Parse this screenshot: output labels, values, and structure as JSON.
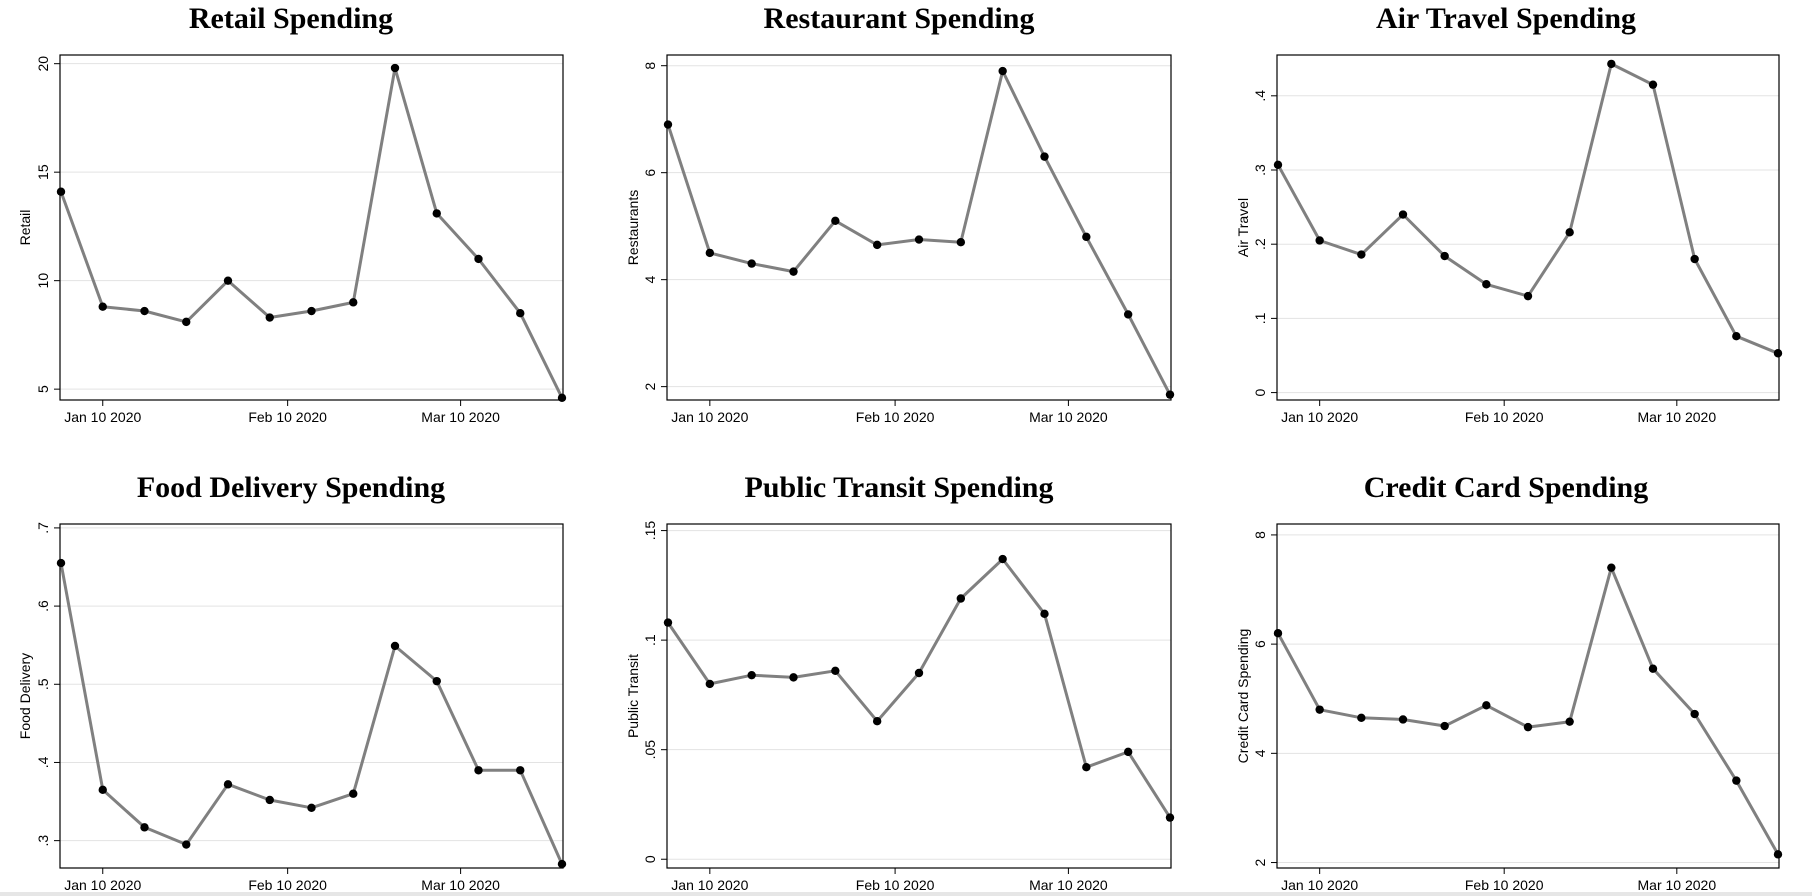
{
  "chart_data": [
    {
      "type": "line",
      "title": "Retail Spending",
      "ylabel": "Retail",
      "xlabel": "",
      "x": [
        "2020-01-03",
        "2020-01-10",
        "2020-01-17",
        "2020-01-24",
        "2020-01-31",
        "2020-02-07",
        "2020-02-14",
        "2020-02-21",
        "2020-02-28",
        "2020-03-06",
        "2020-03-13",
        "2020-03-20",
        "2020-03-27"
      ],
      "xticks": [
        "2020-01-10",
        "2020-02-10",
        "2020-03-10"
      ],
      "xtick_labels": [
        "Jan 10 2020",
        "Feb 10 2020",
        "Mar 10 2020"
      ],
      "values": [
        14.1,
        8.8,
        8.6,
        8.1,
        10.0,
        8.3,
        8.6,
        9.0,
        19.8,
        13.1,
        11.0,
        8.5,
        4.6
      ],
      "ylim": [
        4.5,
        20.4
      ],
      "yticks": [
        5,
        10,
        15,
        20
      ],
      "ytick_labels": [
        "5",
        "10",
        "15",
        "20"
      ],
      "grid": true,
      "line_color": "#808080",
      "marker_color": "#000000"
    },
    {
      "type": "line",
      "title": "Restaurant Spending",
      "ylabel": "Restaurants",
      "xlabel": "",
      "x": [
        "2020-01-03",
        "2020-01-10",
        "2020-01-17",
        "2020-01-24",
        "2020-01-31",
        "2020-02-07",
        "2020-02-14",
        "2020-02-21",
        "2020-02-28",
        "2020-03-06",
        "2020-03-13",
        "2020-03-20",
        "2020-03-27"
      ],
      "xticks": [
        "2020-01-10",
        "2020-02-10",
        "2020-03-10"
      ],
      "xtick_labels": [
        "Jan 10 2020",
        "Feb 10 2020",
        "Mar 10 2020"
      ],
      "values": [
        6.9,
        4.5,
        4.3,
        4.15,
        5.1,
        4.65,
        4.75,
        4.7,
        7.9,
        6.3,
        4.8,
        3.35,
        1.85
      ],
      "ylim": [
        1.75,
        8.2
      ],
      "yticks": [
        2,
        4,
        6,
        8
      ],
      "ytick_labels": [
        "2",
        "4",
        "6",
        "8"
      ],
      "grid": true,
      "line_color": "#808080",
      "marker_color": "#000000"
    },
    {
      "type": "line",
      "title": "Air Travel Spending",
      "ylabel": "Air Travel",
      "xlabel": "",
      "x": [
        "2020-01-03",
        "2020-01-10",
        "2020-01-17",
        "2020-01-24",
        "2020-01-31",
        "2020-02-07",
        "2020-02-14",
        "2020-02-21",
        "2020-02-28",
        "2020-03-06",
        "2020-03-13",
        "2020-03-20",
        "2020-03-27"
      ],
      "xticks": [
        "2020-01-10",
        "2020-02-10",
        "2020-03-10"
      ],
      "xtick_labels": [
        "Jan 10 2020",
        "Feb 10 2020",
        "Mar 10 2020"
      ],
      "values": [
        0.307,
        0.205,
        0.186,
        0.24,
        0.184,
        0.146,
        0.13,
        0.216,
        0.443,
        0.415,
        0.18,
        0.076,
        0.053
      ],
      "ylim": [
        -0.01,
        0.455
      ],
      "yticks": [
        0,
        0.1,
        0.2,
        0.3,
        0.4
      ],
      "ytick_labels": [
        "0",
        ".1",
        ".2",
        ".3",
        ".4"
      ],
      "grid": true,
      "line_color": "#808080",
      "marker_color": "#000000"
    },
    {
      "type": "line",
      "title": "Food Delivery Spending",
      "ylabel": "Food Delivery",
      "xlabel": "",
      "x": [
        "2020-01-03",
        "2020-01-10",
        "2020-01-17",
        "2020-01-24",
        "2020-01-31",
        "2020-02-07",
        "2020-02-14",
        "2020-02-21",
        "2020-02-28",
        "2020-03-06",
        "2020-03-13",
        "2020-03-20",
        "2020-03-27"
      ],
      "xticks": [
        "2020-01-10",
        "2020-02-10",
        "2020-03-10"
      ],
      "xtick_labels": [
        "Jan 10 2020",
        "Feb 10 2020",
        "Mar 10 2020"
      ],
      "values": [
        0.655,
        0.365,
        0.317,
        0.295,
        0.372,
        0.352,
        0.342,
        0.36,
        0.549,
        0.504,
        0.39,
        0.39,
        0.27
      ],
      "ylim": [
        0.265,
        0.705
      ],
      "yticks": [
        0.3,
        0.4,
        0.5,
        0.6,
        0.7
      ],
      "ytick_labels": [
        ".3",
        ".4",
        ".5",
        ".6",
        ".7"
      ],
      "grid": true,
      "line_color": "#808080",
      "marker_color": "#000000"
    },
    {
      "type": "line",
      "title": "Public Transit Spending",
      "ylabel": "Public Transit",
      "xlabel": "",
      "x": [
        "2020-01-03",
        "2020-01-10",
        "2020-01-17",
        "2020-01-24",
        "2020-01-31",
        "2020-02-07",
        "2020-02-14",
        "2020-02-21",
        "2020-02-28",
        "2020-03-06",
        "2020-03-13",
        "2020-03-20",
        "2020-03-27"
      ],
      "xticks": [
        "2020-01-10",
        "2020-02-10",
        "2020-03-10"
      ],
      "xtick_labels": [
        "Jan 10 2020",
        "Feb 10 2020",
        "Mar 10 2020"
      ],
      "values": [
        0.108,
        0.08,
        0.084,
        0.083,
        0.086,
        0.063,
        0.085,
        0.119,
        0.137,
        0.112,
        0.042,
        0.049,
        0.019
      ],
      "ylim": [
        -0.004,
        0.153
      ],
      "yticks": [
        0,
        0.05,
        0.1,
        0.15
      ],
      "ytick_labels": [
        "0",
        ".05",
        ".1",
        ".15"
      ],
      "grid": true,
      "line_color": "#808080",
      "marker_color": "#000000"
    },
    {
      "type": "line",
      "title": "Credit Card Spending",
      "ylabel": "Credit Card Spending",
      "xlabel": "",
      "x": [
        "2020-01-03",
        "2020-01-10",
        "2020-01-17",
        "2020-01-24",
        "2020-01-31",
        "2020-02-07",
        "2020-02-14",
        "2020-02-21",
        "2020-02-28",
        "2020-03-06",
        "2020-03-13",
        "2020-03-20",
        "2020-03-27"
      ],
      "xticks": [
        "2020-01-10",
        "2020-02-10",
        "2020-03-10"
      ],
      "xtick_labels": [
        "Jan 10 2020",
        "Feb 10 2020",
        "Mar 10 2020"
      ],
      "values": [
        6.2,
        4.8,
        4.65,
        4.62,
        4.5,
        4.88,
        4.48,
        4.58,
        7.4,
        5.55,
        4.72,
        3.5,
        2.15
      ],
      "ylim": [
        1.9,
        8.2
      ],
      "yticks": [
        2,
        4,
        6,
        8
      ],
      "ytick_labels": [
        "2",
        "4",
        "6",
        "8"
      ],
      "grid": true,
      "line_color": "#808080",
      "marker_color": "#000000"
    }
  ]
}
